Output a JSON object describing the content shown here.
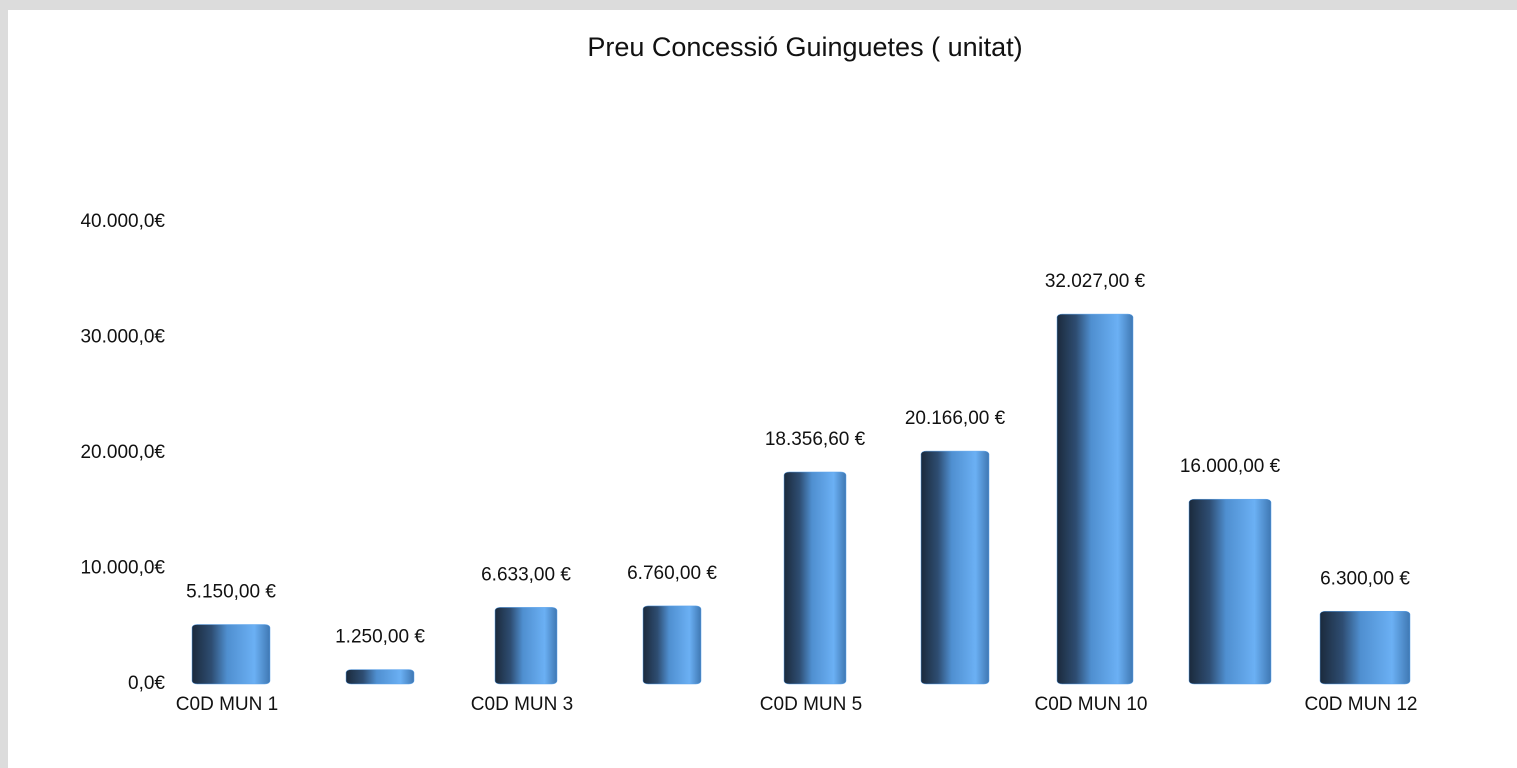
{
  "chart_data": {
    "type": "bar",
    "title": "Preu Concessió Guinguetes ( unitat)",
    "categories": [
      "C0D MUN 1",
      null,
      "C0D MUN 3",
      null,
      "C0D MUN 5",
      null,
      "C0D MUN 10",
      null,
      "C0D MUN 12"
    ],
    "values": [
      5150,
      1250,
      6633,
      6760,
      18356.6,
      20166,
      32027,
      16000,
      6300
    ],
    "value_labels": [
      "5.150,00 €",
      "1.250,00 €",
      "6.633,00 €",
      "6.760,00 €",
      "18.356,60 €",
      "20.166,00 €",
      "32.027,00 €",
      "16.000,00 €",
      "6.300,00 €"
    ],
    "color": "#5da5ee",
    "ylim": [
      0,
      40000
    ],
    "yticks": [
      {
        "value": 0,
        "label": "0,0€"
      },
      {
        "value": 10000,
        "label": "10.000,0€"
      },
      {
        "value": 20000,
        "label": "20.000,0€"
      },
      {
        "value": 30000,
        "label": "30.000,0€"
      },
      {
        "value": 40000,
        "label": "40.000,0€"
      }
    ],
    "grid": false
  }
}
